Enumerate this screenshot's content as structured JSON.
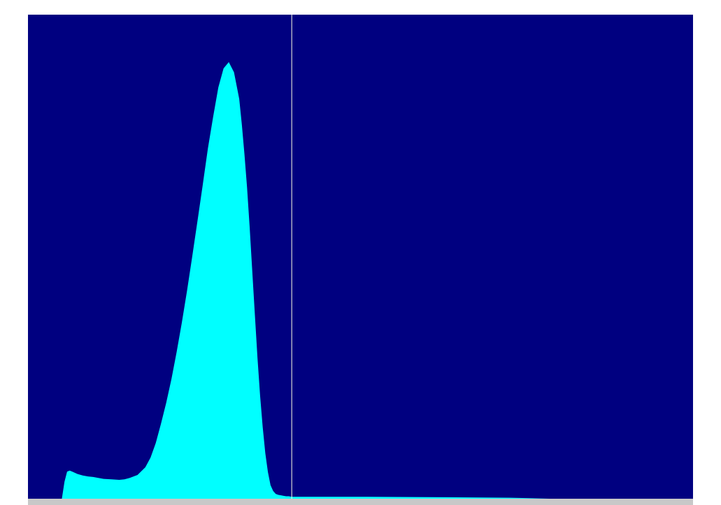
{
  "colors": {
    "plot_background": "#000080",
    "fill": "#00ffff",
    "marker_line": "#ffffe0",
    "strip": "#c8c8c8"
  },
  "chart_data": {
    "type": "area",
    "title": "",
    "xlabel": "",
    "ylabel": "",
    "x_range": [
      0,
      255
    ],
    "y_range": [
      0,
      100
    ],
    "grid": false,
    "legend": "none",
    "marker_x": 101,
    "x": [
      0,
      13,
      14,
      15,
      16,
      17,
      19,
      21,
      23,
      25,
      27,
      29,
      32,
      35,
      37,
      39,
      42,
      45,
      47,
      49,
      51,
      53,
      55,
      57,
      59,
      61,
      63,
      65,
      67,
      69,
      71,
      73,
      75,
      77,
      79,
      81,
      82,
      83,
      84,
      85,
      86,
      87,
      88,
      89,
      90,
      91,
      92,
      93,
      94,
      95,
      96,
      97,
      98,
      99,
      100,
      101,
      102,
      110,
      130,
      160,
      185,
      200,
      255
    ],
    "y": [
      0,
      0,
      3.5,
      5.6,
      5.8,
      5.6,
      5.1,
      4.8,
      4.6,
      4.5,
      4.3,
      4.1,
      4.0,
      3.9,
      4.0,
      4.3,
      4.9,
      6.5,
      8.5,
      11.5,
      15.5,
      19.8,
      24.7,
      30.3,
      36.4,
      43.0,
      50.1,
      57.4,
      64.8,
      72.4,
      78.9,
      85.0,
      88.9,
      90.2,
      88.1,
      82.6,
      77.3,
      71.2,
      64.3,
      56.1,
      47.0,
      38.0,
      29.1,
      21.3,
      14.8,
      9.4,
      5.5,
      2.8,
      1.6,
      1.0,
      0.8,
      0.7,
      0.6,
      0.5,
      0.5,
      0.4,
      0.4,
      0.4,
      0.4,
      0.3,
      0.2,
      0,
      0
    ]
  }
}
